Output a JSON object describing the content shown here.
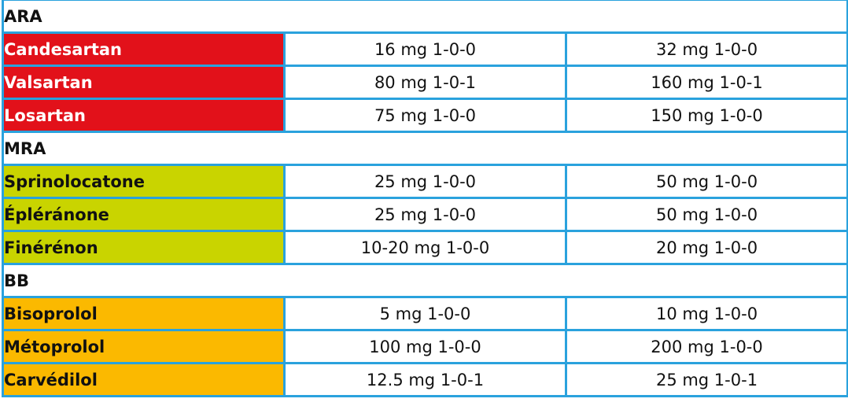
{
  "sections": [
    {
      "title": "ARA",
      "color": "#e2111a",
      "rows": [
        {
          "drug": "Candesartan",
          "start_dose": "16 mg 1-0-0",
          "target_dose": "32 mg 1-0-0"
        },
        {
          "drug": "Valsartan",
          "start_dose": "80 mg 1-0-1",
          "target_dose": "160 mg 1-0-1"
        },
        {
          "drug": "Losartan",
          "start_dose": "75 mg 1-0-0",
          "target_dose": "150 mg 1-0-0"
        }
      ]
    },
    {
      "title": "MRA",
      "color": "#c9d400",
      "rows": [
        {
          "drug": "Sprinolocatone",
          "start_dose": "25 mg 1-0-0",
          "target_dose": "50 mg 1-0-0"
        },
        {
          "drug": "Épléránone",
          "start_dose": "25 mg 1-0-0",
          "target_dose": "50 mg 1-0-0"
        },
        {
          "drug": "Finérénon",
          "start_dose": "10-20 mg 1-0-0",
          "target_dose": "20 mg 1-0-0"
        }
      ]
    },
    {
      "title": "BB",
      "color": "#fbb900",
      "rows": [
        {
          "drug": "Bisoprolol",
          "start_dose": "5 mg 1-0-0",
          "target_dose": "10 mg 1-0-0"
        },
        {
          "drug": "Métoprolol",
          "start_dose": "100 mg 1-0-0",
          "target_dose": "200 mg 1-0-0"
        },
        {
          "drug": "Carvédilol",
          "start_dose": "12.5 mg 1-0-1",
          "target_dose": "25 mg 1-0-1"
        }
      ]
    }
  ],
  "border_color": "#2aa2dd"
}
